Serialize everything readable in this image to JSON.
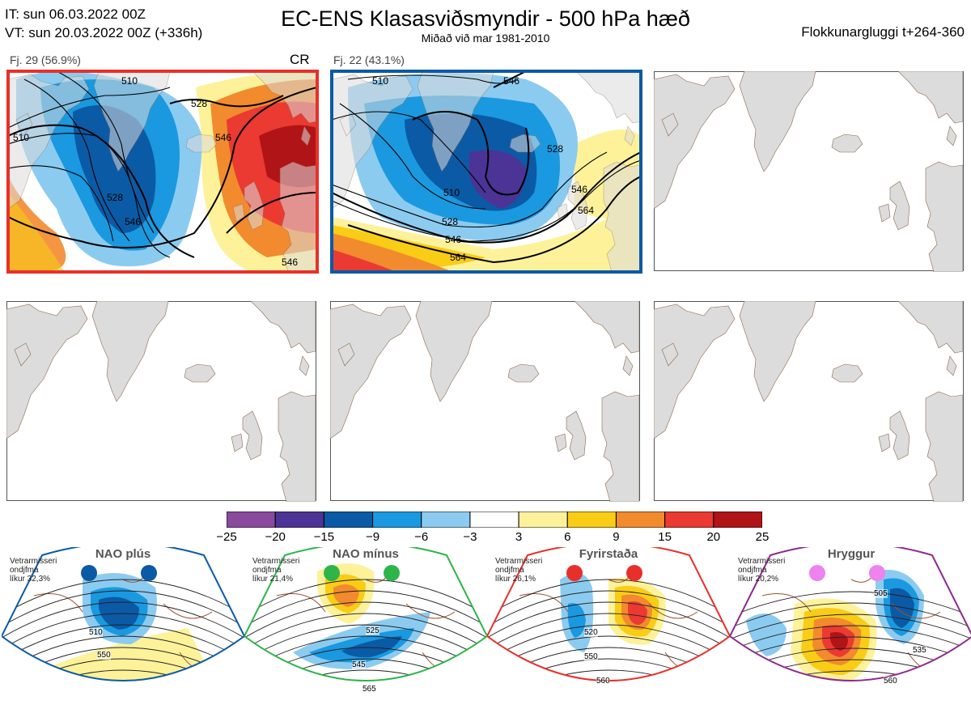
{
  "header": {
    "it_line": "IT: sun 06.03.2022 00Z",
    "vt_line": "VT: sun 20.03.2022 00Z  (+336h)",
    "title": "EC-ENS Klasasviðsmyndir - 500 hPa hæð",
    "subtitle": "Miðað við mar 1981-2010",
    "window": "Flokkunargluggi t+264-360"
  },
  "panels": [
    {
      "label": "Fj. 29 (56.9%)",
      "tag": "CR",
      "border": "#e8302a",
      "contours": [
        "510",
        "528",
        "546",
        "510",
        "528",
        "546",
        "546"
      ]
    },
    {
      "label": "Fj. 22 (43.1%)",
      "tag": "",
      "border": "#0b5aa5",
      "contours": [
        "510",
        "528",
        "546",
        "510",
        "528",
        "546",
        "564",
        "546",
        "564"
      ]
    }
  ],
  "colorbar": {
    "colors": [
      "#8a4a9e",
      "#4b3496",
      "#0b5aa5",
      "#1a99e0",
      "#8ccbf0",
      "#ffffff",
      "#fdf29a",
      "#f9cd16",
      "#f28a2e",
      "#ea3a32",
      "#b11416"
    ],
    "ticks": [
      "−25",
      "−20",
      "−15",
      "−9",
      "−6",
      "−3",
      "3",
      "6",
      "9",
      "15",
      "20",
      "25"
    ]
  },
  "regimes": [
    {
      "name": "NAO plús",
      "note1": "Vetrarmisseri",
      "note2": "ondjfma",
      "note3": "líkur 32,3%",
      "color": "#0b5aa5",
      "labels": [
        "510",
        "550"
      ]
    },
    {
      "name": "NAO mínus",
      "note1": "Vetrarmisseri",
      "note2": "ondjfma",
      "note3": "líkur 21,4%",
      "color": "#2db54a",
      "labels": [
        "525",
        "545",
        "565"
      ]
    },
    {
      "name": "Fyrirstaða",
      "note1": "Vetrarmisseri",
      "note2": "ondjfma",
      "note3": "líkur 26,1%",
      "color": "#e8302a",
      "labels": [
        "520",
        "550",
        "560"
      ]
    },
    {
      "name": "Hryggur",
      "note1": "Vetrarmisseri",
      "note2": "ondjfma",
      "note3": "líkur 20,2%",
      "color": "#8e2a8e",
      "labels": [
        "505",
        "535",
        "560"
      ]
    }
  ]
}
